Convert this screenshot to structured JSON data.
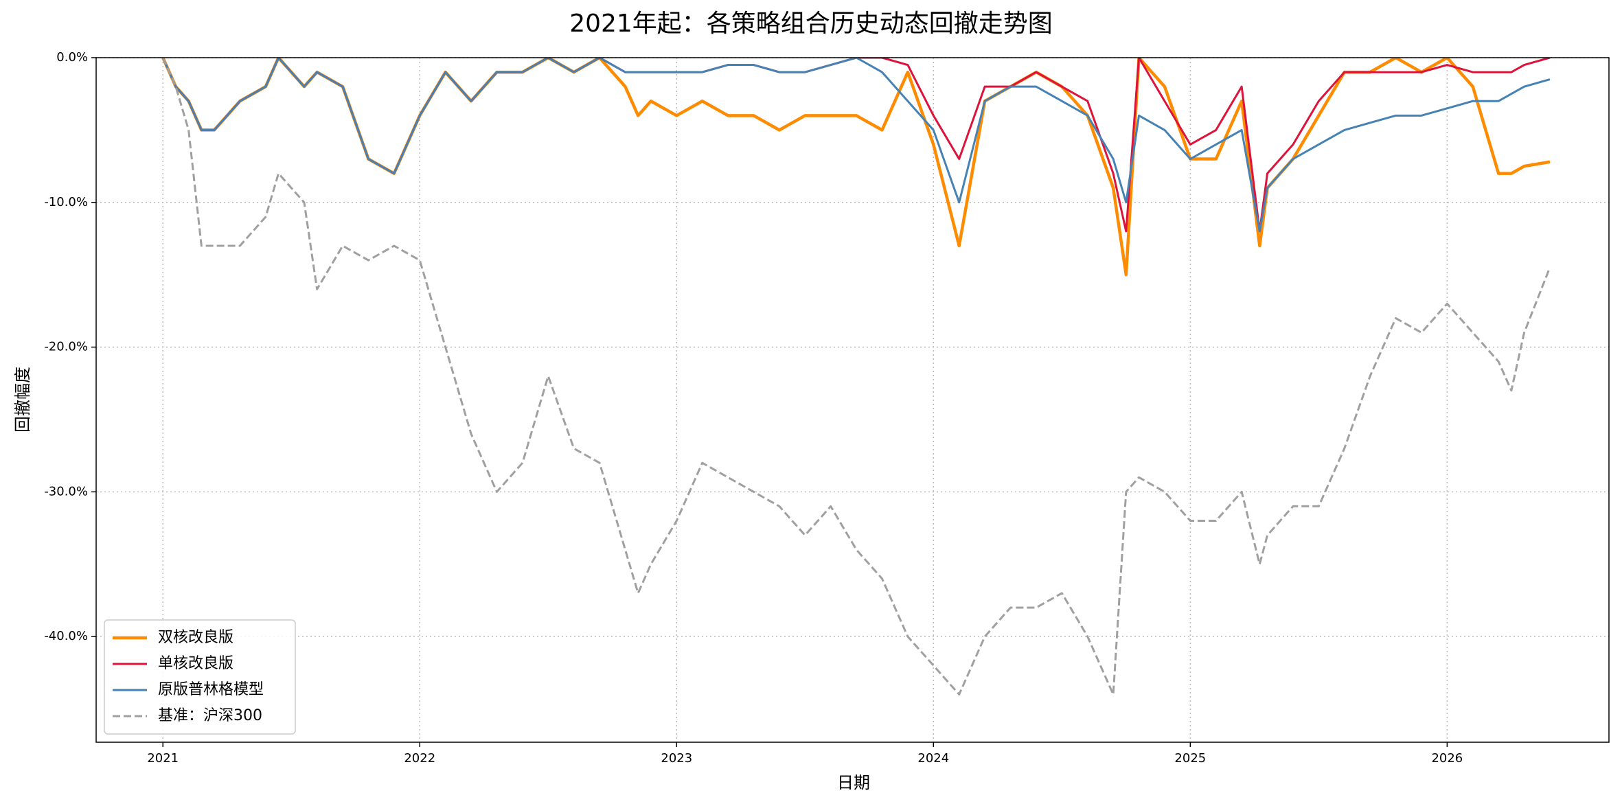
{
  "chart_data": {
    "type": "line",
    "title": "2021年起：各策略组合历史动态回撤走势图",
    "xlabel": "日期",
    "ylabel": "回撤幅度",
    "x": [
      2021.0,
      2021.05,
      2021.1,
      2021.15,
      2021.2,
      2021.3,
      2021.4,
      2021.45,
      2021.55,
      2021.6,
      2021.7,
      2021.8,
      2021.9,
      2022.0,
      2022.1,
      2022.2,
      2022.3,
      2022.4,
      2022.5,
      2022.6,
      2022.7,
      2022.8,
      2022.85,
      2022.9,
      2023.0,
      2023.1,
      2023.2,
      2023.3,
      2023.4,
      2023.5,
      2023.6,
      2023.7,
      2023.8,
      2023.9,
      2024.0,
      2024.1,
      2024.2,
      2024.3,
      2024.4,
      2024.5,
      2024.6,
      2024.7,
      2024.75,
      2024.8,
      2024.9,
      2025.0,
      2025.1,
      2025.2,
      2025.27,
      2025.3,
      2025.4,
      2025.5,
      2025.6,
      2025.7,
      2025.8,
      2025.9,
      2026.0,
      2026.1,
      2026.2,
      2026.25,
      2026.3,
      2026.4
    ],
    "series": [
      {
        "name": "双核改良版",
        "color": "#ff8c00",
        "linestyle": "solid",
        "values": [
          0,
          -2,
          -3,
          -5,
          -5,
          -3,
          -2,
          0,
          -2,
          -1,
          -2,
          -7,
          -8,
          -4,
          -1,
          -3,
          -1,
          -1,
          0,
          -1,
          0,
          -2,
          -4,
          -3,
          -4,
          -3,
          -4,
          -4,
          -5,
          -4,
          -4,
          -4,
          -5,
          -1,
          -6,
          -13,
          -3,
          -2,
          -1,
          -2,
          -4,
          -9,
          -15,
          0,
          -2,
          -7,
          -7,
          -3,
          -13,
          -9,
          -7,
          -4,
          -1,
          -1,
          0,
          -1,
          0,
          -2,
          -8,
          -8,
          -7.5,
          -7.2
        ]
      },
      {
        "name": "单核改良版",
        "color": "#dc143c",
        "linestyle": "solid",
        "values": [
          0,
          -2,
          -3,
          -5,
          -5,
          -3,
          -2,
          0,
          -2,
          -1,
          -2,
          -7,
          -8,
          -4,
          -1,
          -3,
          -1,
          -1,
          0,
          -1,
          0,
          -1,
          -1,
          -1,
          -1,
          -1,
          -0.5,
          -0.5,
          -1,
          -1,
          -0.5,
          0,
          0,
          -0.5,
          -4,
          -7,
          -2,
          -2,
          -1,
          -2,
          -3,
          -8,
          -12,
          0,
          -3,
          -6,
          -5,
          -2,
          -12,
          -8,
          -6,
          -3,
          -1,
          -1,
          -1,
          -1,
          -0.5,
          -1,
          -1,
          -1,
          -0.5,
          0
        ]
      },
      {
        "name": "原版普林格模型",
        "color": "#4682b4",
        "linestyle": "solid",
        "values": [
          0,
          -2,
          -3,
          -5,
          -5,
          -3,
          -2,
          0,
          -2,
          -1,
          -2,
          -7,
          -8,
          -4,
          -1,
          -3,
          -1,
          -1,
          0,
          -1,
          0,
          -1,
          -1,
          -1,
          -1,
          -1,
          -0.5,
          -0.5,
          -1,
          -1,
          -0.5,
          0,
          -1,
          -3,
          -5,
          -10,
          -3,
          -2,
          -2,
          -3,
          -4,
          -7,
          -10,
          -4,
          -5,
          -7,
          -6,
          -5,
          -12,
          -9,
          -7,
          -6,
          -5,
          -4.5,
          -4,
          -4,
          -3.5,
          -3,
          -3,
          -2.5,
          -2,
          -1.5
        ]
      },
      {
        "name": "基准：沪深300",
        "color": "#a0a0a0",
        "linestyle": "dashed",
        "values": [
          0,
          -2,
          -5,
          -13,
          -13,
          -13,
          -11,
          -8,
          -10,
          -16,
          -13,
          -14,
          -13,
          -14,
          -20,
          -26,
          -30,
          -28,
          -22,
          -27,
          -28,
          -34,
          -37,
          -35,
          -32,
          -28,
          -29,
          -30,
          -31,
          -33,
          -31,
          -34,
          -36,
          -40,
          -42,
          -44,
          -40,
          -38,
          -38,
          -37,
          -40,
          -44,
          -30,
          -29,
          -30,
          -32,
          -32,
          -30,
          -35,
          -33,
          -31,
          -31,
          -27,
          -22,
          -18,
          -19,
          -17,
          -19,
          -21,
          -23,
          -19,
          -14.5
        ]
      }
    ],
    "xlim": [
      2020.74,
      2026.63
    ],
    "xticks": [
      2021,
      2022,
      2023,
      2024,
      2025,
      2026
    ],
    "ylim": [
      -47.3,
      0
    ],
    "yticks": [
      {
        "value": -40,
        "label": "-40.0%"
      },
      {
        "value": -30,
        "label": "-30.0%"
      },
      {
        "value": -20,
        "label": "-20.0%"
      },
      {
        "value": -10,
        "label": "-10.0%"
      },
      {
        "value": 0,
        "label": "0.0%"
      }
    ],
    "grid": true,
    "legend": "lower left"
  }
}
